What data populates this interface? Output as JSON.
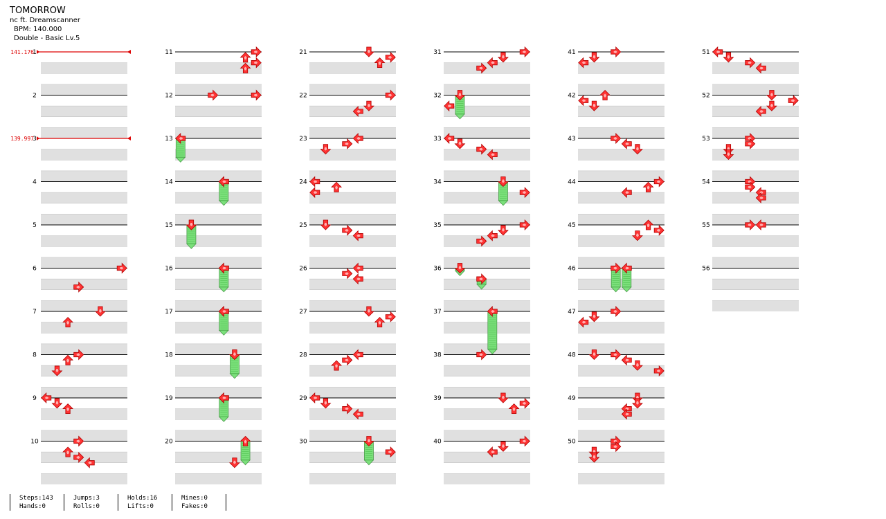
{
  "song": {
    "title": "TOMORROW",
    "artist": "nc ft. Dreamscanner",
    "bpm": "BPM: 140.000",
    "difficulty": "Double - Basic Lv.5"
  },
  "bpm_changes": [
    {
      "measure": 1,
      "label": "141.176"
    },
    {
      "measure": 3,
      "label": "139.997"
    }
  ],
  "measures": [
    "1",
    "2",
    "3",
    "4",
    "5",
    "6",
    "7",
    "8",
    "9",
    "10",
    "11",
    "12",
    "13",
    "14",
    "15",
    "16",
    "17",
    "18",
    "19",
    "20",
    "21",
    "22",
    "23",
    "24",
    "25",
    "26",
    "27",
    "28",
    "29",
    "30",
    "31",
    "32",
    "33",
    "34",
    "35",
    "36",
    "37",
    "38",
    "39",
    "40",
    "41",
    "42",
    "43",
    "44",
    "45",
    "46",
    "47",
    "48",
    "49",
    "50",
    "51",
    "52",
    "53",
    "54",
    "55",
    "56"
  ],
  "stats": {
    "steps": "Steps:143",
    "hands": "Hands:0",
    "jumps": "Jumps:3",
    "rolls": "Rolls:0",
    "holds": "Holds:16",
    "lifts": "Lifts:0",
    "mines": "Mines:0",
    "fakes": "Fakes:0"
  },
  "colors": {
    "arrow": "#ff3333",
    "hold": "#7be07b",
    "stripe": "#e0e0e0",
    "bpm_marker": "#dd0000"
  },
  "notes_legend": "beat = quarter note within measure; dir: L,D,U,R; col 0-7 (double)",
  "notes": [
    [
      6,
      0,
      7
    ],
    [
      6,
      1.75,
      3
    ],
    [
      7,
      0,
      5
    ],
    [
      7,
      1,
      2
    ],
    [
      8,
      0,
      3
    ],
    [
      8,
      0.5,
      2
    ],
    [
      8,
      1.5,
      1
    ],
    [
      9,
      0,
      0
    ],
    [
      9,
      0.5,
      1
    ],
    [
      9,
      1,
      2
    ],
    [
      10,
      0,
      3
    ],
    [
      10,
      1,
      2
    ],
    [
      10,
      1.5,
      3
    ],
    [
      10,
      2,
      4
    ],
    [
      11,
      0,
      7
    ],
    [
      11,
      0.5,
      6
    ],
    [
      11,
      1,
      7
    ],
    [
      11,
      1.5,
      6
    ],
    [
      12,
      0,
      3
    ],
    [
      12,
      0,
      7
    ],
    [
      13,
      0,
      0
    ],
    [
      14,
      0,
      4
    ],
    [
      14,
      0,
      4
    ],
    [
      15,
      0,
      1
    ],
    [
      15,
      0,
      1
    ],
    [
      16,
      0,
      4
    ],
    [
      16,
      0,
      4
    ],
    [
      17,
      0,
      4
    ],
    [
      17,
      0,
      4
    ],
    [
      18,
      0,
      5
    ],
    [
      18,
      0,
      5
    ],
    [
      19,
      0,
      4
    ],
    [
      19,
      0,
      4
    ],
    [
      20,
      0,
      6
    ],
    [
      20,
      2,
      5
    ],
    [
      21,
      0,
      5
    ],
    [
      21,
      0.5,
      7
    ],
    [
      21,
      1,
      6
    ],
    [
      22,
      0,
      7
    ],
    [
      22,
      1,
      5
    ],
    [
      22,
      1.5,
      4
    ],
    [
      23,
      0,
      4
    ],
    [
      23,
      0.5,
      3
    ],
    [
      23,
      1,
      1
    ],
    [
      24,
      0,
      0
    ],
    [
      24,
      0.5,
      2
    ],
    [
      24,
      1,
      0
    ],
    [
      25,
      0,
      1
    ],
    [
      25,
      0.5,
      3
    ],
    [
      25,
      1,
      4
    ],
    [
      26,
      0,
      4
    ],
    [
      26,
      0.5,
      3
    ],
    [
      26,
      1,
      4
    ],
    [
      27,
      0,
      5
    ],
    [
      27,
      0.5,
      7
    ],
    [
      27,
      1,
      6
    ],
    [
      28,
      0,
      4
    ],
    [
      28,
      0.5,
      3
    ],
    [
      28,
      1,
      2
    ],
    [
      29,
      0,
      0
    ],
    [
      29,
      0.5,
      1
    ],
    [
      29,
      1,
      3
    ],
    [
      29,
      1.5,
      4
    ],
    [
      30,
      0,
      5
    ],
    [
      30,
      1,
      7
    ],
    [
      31,
      0,
      7
    ],
    [
      31,
      0.5,
      5
    ],
    [
      31,
      1,
      4
    ],
    [
      31,
      1.5,
      3
    ],
    [
      32,
      0,
      1
    ],
    [
      32,
      1,
      0
    ],
    [
      33,
      0,
      0
    ],
    [
      33,
      0.5,
      1
    ],
    [
      33,
      1,
      3
    ],
    [
      33,
      1.5,
      4
    ],
    [
      34,
      0,
      5
    ],
    [
      34,
      1,
      7
    ],
    [
      35,
      0,
      7
    ],
    [
      35,
      0.5,
      5
    ],
    [
      35,
      1,
      4
    ],
    [
      35,
      1.5,
      3
    ],
    [
      36,
      0,
      1
    ],
    [
      36,
      1,
      3
    ],
    [
      37,
      0,
      4
    ],
    [
      38,
      0,
      3
    ],
    [
      39,
      0,
      5
    ],
    [
      39,
      0.5,
      7
    ],
    [
      39,
      1,
      6
    ],
    [
      40,
      0,
      7
    ],
    [
      40,
      0.5,
      5
    ],
    [
      40,
      1,
      4
    ],
    [
      41,
      0,
      3
    ],
    [
      41,
      0.5,
      1
    ],
    [
      41,
      1,
      0
    ],
    [
      42,
      0,
      2
    ],
    [
      42,
      0.5,
      0
    ],
    [
      42,
      1,
      1
    ],
    [
      43,
      0,
      3
    ],
    [
      43,
      0.5,
      4
    ],
    [
      43,
      1,
      5
    ],
    [
      44,
      0,
      7
    ],
    [
      44,
      0.5,
      6
    ],
    [
      44,
      1,
      4
    ],
    [
      45,
      0,
      6
    ],
    [
      45,
      0.5,
      7
    ],
    [
      45,
      1,
      5
    ],
    [
      46,
      0,
      3
    ],
    [
      46,
      0,
      4
    ],
    [
      47,
      0,
      3
    ],
    [
      47,
      0.5,
      1
    ],
    [
      47,
      1,
      0
    ],
    [
      48,
      0,
      1
    ],
    [
      48,
      0,
      3
    ],
    [
      48,
      0.5,
      4
    ],
    [
      48,
      1,
      5
    ],
    [
      48,
      1.5,
      7
    ],
    [
      49,
      0,
      5
    ],
    [
      49,
      0.5,
      5
    ],
    [
      49,
      1,
      4
    ],
    [
      49,
      1.5,
      4
    ],
    [
      50,
      0,
      3
    ],
    [
      50,
      0.5,
      3
    ],
    [
      50,
      1,
      1
    ],
    [
      50,
      1.5,
      1
    ],
    [
      51,
      0,
      0
    ],
    [
      51,
      0.5,
      1
    ],
    [
      51,
      1,
      3
    ],
    [
      51,
      1.5,
      4
    ],
    [
      52,
      0,
      5
    ],
    [
      52,
      0.5,
      7
    ],
    [
      52,
      1,
      5
    ],
    [
      52,
      1.5,
      4
    ],
    [
      53,
      0,
      3
    ],
    [
      53,
      0.5,
      3
    ],
    [
      53,
      1,
      1
    ],
    [
      53,
      1.5,
      1
    ],
    [
      54,
      0,
      3
    ],
    [
      54,
      0.5,
      3
    ],
    [
      54,
      1,
      4
    ],
    [
      54,
      1.5,
      4
    ],
    [
      55,
      0,
      3
    ],
    [
      55,
      0,
      4
    ]
  ]
}
